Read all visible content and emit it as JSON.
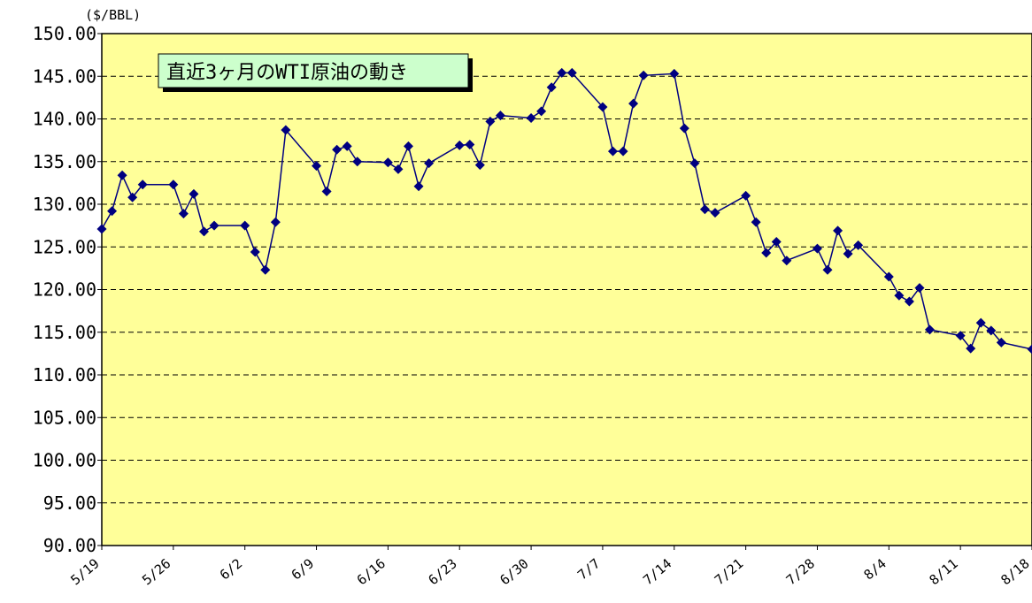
{
  "chart_data": {
    "type": "line",
    "title": "直近3ヶ月のWTI原油の動き",
    "y_unit": "($/BBL)",
    "x": [
      "5/19",
      "5/20",
      "5/21",
      "5/22",
      "5/23",
      "5/26",
      "5/27",
      "5/28",
      "5/29",
      "5/30",
      "6/2",
      "6/3",
      "6/4",
      "6/5",
      "6/6",
      "6/9",
      "6/10",
      "6/11",
      "6/12",
      "6/13",
      "6/16",
      "6/17",
      "6/18",
      "6/19",
      "6/20",
      "6/23",
      "6/24",
      "6/25",
      "6/26",
      "6/27",
      "6/30",
      "7/1",
      "7/2",
      "7/3",
      "7/4",
      "7/7",
      "7/8",
      "7/9",
      "7/10",
      "7/11",
      "7/14",
      "7/15",
      "7/16",
      "7/17",
      "7/18",
      "7/21",
      "7/22",
      "7/23",
      "7/24",
      "7/25",
      "7/28",
      "7/29",
      "7/30",
      "7/31",
      "8/1",
      "8/4",
      "8/5",
      "8/6",
      "8/7",
      "8/8",
      "8/11",
      "8/12",
      "8/13",
      "8/14",
      "8/15",
      "8/18"
    ],
    "series": [
      {
        "name": "WTI",
        "color": "#000080",
        "values": [
          127.1,
          129.2,
          133.4,
          130.8,
          132.3,
          132.3,
          128.9,
          131.2,
          126.8,
          127.5,
          127.5,
          124.4,
          122.3,
          127.9,
          138.7,
          134.5,
          131.5,
          136.4,
          136.8,
          135.0,
          134.9,
          134.1,
          136.8,
          132.1,
          134.8,
          136.9,
          137.0,
          134.6,
          139.7,
          140.4,
          140.1,
          140.9,
          143.7,
          145.4,
          145.4,
          141.4,
          136.2,
          136.2,
          141.8,
          145.1,
          145.3,
          138.9,
          134.8,
          129.4,
          129.0,
          131.0,
          127.9,
          124.3,
          125.6,
          123.4,
          124.8,
          122.3,
          126.9,
          124.2,
          125.2,
          121.5,
          119.3,
          118.6,
          120.2,
          115.3,
          114.6,
          113.1,
          116.1,
          115.2,
          113.8,
          113.0
        ]
      }
    ],
    "xlim": [
      "5/19",
      "8/18"
    ],
    "xticks": [
      "5/19",
      "5/26",
      "6/2",
      "6/9",
      "6/16",
      "6/23",
      "6/30",
      "7/7",
      "7/14",
      "7/21",
      "7/28",
      "8/4",
      "8/11",
      "8/18"
    ],
    "ylim": [
      90,
      150
    ],
    "yticks": [
      {
        "value": 90,
        "label": "90.00"
      },
      {
        "value": 95,
        "label": "95.00"
      },
      {
        "value": 100,
        "label": "100.00"
      },
      {
        "value": 105,
        "label": "105.00"
      },
      {
        "value": 110,
        "label": "110.00"
      },
      {
        "value": 115,
        "label": "115.00"
      },
      {
        "value": 120,
        "label": "120.00"
      },
      {
        "value": 125,
        "label": "125.00"
      },
      {
        "value": 130,
        "label": "130.00"
      },
      {
        "value": 135,
        "label": "135.00"
      },
      {
        "value": 140,
        "label": "140.00"
      },
      {
        "value": 145,
        "label": "145.00"
      },
      {
        "value": 150,
        "label": "150.00"
      }
    ],
    "grid": true,
    "background": "#ffff99"
  }
}
